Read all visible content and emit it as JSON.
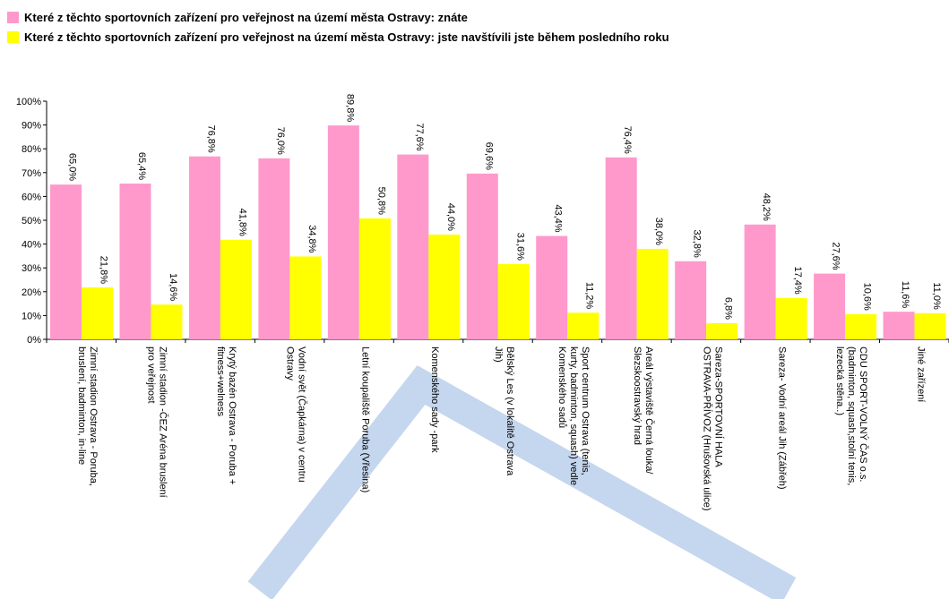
{
  "chart_data": {
    "type": "bar",
    "legend_position": "top",
    "grid": false,
    "ylim": [
      0,
      100
    ],
    "y_ticks": [
      "0%",
      "10%",
      "20%",
      "30%",
      "40%",
      "50%",
      "60%",
      "70%",
      "80%",
      "90%",
      "100%"
    ],
    "categories": [
      "Zimní stadion Ostrava - Poruba, bruslení, badminton, in-line",
      "Zimní stadion -ČEZ Aréna bruslení pro veřejnost",
      "Krytý bazén Ostrava - Poruba + fitness+welness",
      "Vodní svět (Čapkárna) v centru Ostravy",
      "Letní koupaliště Poruba (Vřesina)",
      "Komenského sady -park",
      "Bělský Les (v lokalitě Ostrava Jih)",
      "Sport centrum Ostrava (tenis, kurty, badminton, squash) vedle Komenského sadů",
      "Areál výstaviště Černá louka/ Slezskoostravský hrad",
      "Sareza-SPORTOVNÍ HALA OSTRAVA-PŘÍVOZ (Hrušovská ulice)",
      "Sareza- Vodní areál Jih (Zábřeh)",
      "CDU SPORT-VOLNÝ ČAS o.s. (badminton, squash,stolní tenis, lezecká stěna..)",
      "Jiné zařízení"
    ],
    "series": [
      {
        "name": "Které z těchto sportovních zařízení pro veřejnost na území města Ostravy: znáte",
        "color": "#ff99cc",
        "values": [
          65.0,
          65.4,
          76.8,
          76.0,
          89.8,
          77.6,
          69.6,
          43.4,
          76.4,
          32.8,
          48.2,
          27.6,
          11.6
        ],
        "labels": [
          "65,0%",
          "65,4%",
          "76,8%",
          "76,0%",
          "89,8%",
          "77,6%",
          "69,6%",
          "43,4%",
          "76,4%",
          "32,8%",
          "48,2%",
          "27,6%",
          "11,6%"
        ]
      },
      {
        "name": "Které z těchto sportovních zařízení pro veřejnost na území města Ostravy: jste navštívili jste během posledního roku",
        "color": "#ffff00",
        "values": [
          21.8,
          14.6,
          41.8,
          34.8,
          50.8,
          44.0,
          31.6,
          11.2,
          38.0,
          6.8,
          17.4,
          10.6,
          11.0
        ],
        "labels": [
          "21,8%",
          "14,6%",
          "41,8%",
          "34,8%",
          "50,8%",
          "44,0%",
          "31,6%",
          "11,2%",
          "38,0%",
          "6,8%",
          "17,4%",
          "10,6%",
          "11,0%"
        ]
      }
    ]
  }
}
